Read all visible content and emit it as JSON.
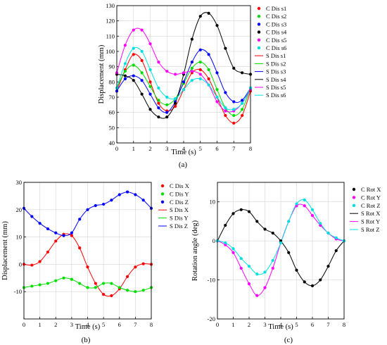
{
  "figure_labels": [
    "(a)",
    "(b)",
    "(c)"
  ],
  "chart_data": [
    {
      "type": "scatter",
      "panel": "(a)",
      "xlabel": "Time (s)",
      "ylabel": "Displacement (mm)",
      "xlim": [
        0,
        8
      ],
      "ylim": [
        40,
        130
      ],
      "x_ticks": [
        0,
        1,
        2,
        3,
        4,
        5,
        6,
        7,
        8
      ],
      "y_ticks": [
        40,
        50,
        60,
        70,
        80,
        90,
        100,
        110,
        120,
        130
      ],
      "grid": true,
      "legend_position": "right",
      "x": [
        0,
        0.5,
        1,
        1.5,
        2,
        2.5,
        3,
        3.5,
        4,
        4.5,
        5,
        5.5,
        6,
        6.5,
        7,
        7.5,
        8
      ],
      "series": [
        {
          "name": "C Dis s1",
          "kind": "marker",
          "color": "#ff0000",
          "values": [
            74,
            88,
            98,
            94,
            80,
            66,
            61,
            64,
            75,
            86,
            88,
            82,
            70,
            58,
            53,
            58,
            74
          ]
        },
        {
          "name": "C Dis s2",
          "kind": "marker",
          "color": "#00dd00",
          "values": [
            76,
            87,
            91,
            86,
            77,
            68,
            65,
            69,
            79,
            89,
            93,
            88,
            75,
            63,
            58,
            62,
            76
          ]
        },
        {
          "name": "C Dis s3",
          "kind": "marker",
          "color": "#0000ff",
          "values": [
            74,
            82,
            84,
            81,
            72,
            63,
            60,
            67,
            80,
            93,
            101,
            98,
            86,
            73,
            67,
            68,
            76
          ]
        },
        {
          "name": "C Dis s4",
          "kind": "marker",
          "color": "#000000",
          "values": [
            85,
            84,
            81,
            72,
            62,
            57,
            57,
            66,
            85,
            108,
            123,
            125,
            117,
            102,
            89,
            86,
            85
          ]
        },
        {
          "name": "C Dis s5",
          "kind": "marker",
          "color": "#ff00ff",
          "values": [
            86,
            104,
            114,
            114,
            105,
            93,
            87,
            85,
            86,
            87,
            85,
            78,
            67,
            61,
            61,
            66,
            75
          ]
        },
        {
          "name": "C Dis s6",
          "kind": "marker",
          "color": "#00e0e0",
          "values": [
            76,
            92,
            102,
            100,
            88,
            76,
            70,
            69,
            75,
            81,
            82,
            78,
            70,
            63,
            62,
            66,
            76
          ]
        },
        {
          "name": "S Dis s1",
          "kind": "line",
          "color": "#ff0000",
          "values": [
            74,
            88,
            98,
            94,
            80,
            66,
            61,
            64,
            75,
            86,
            88,
            82,
            70,
            58,
            53,
            58,
            74
          ]
        },
        {
          "name": "S Dis s2",
          "kind": "line",
          "color": "#00dd00",
          "values": [
            76,
            87,
            91,
            86,
            77,
            68,
            65,
            69,
            79,
            89,
            93,
            88,
            75,
            63,
            58,
            62,
            76
          ]
        },
        {
          "name": "S Dis s3",
          "kind": "line",
          "color": "#0000ff",
          "values": [
            74,
            82,
            84,
            81,
            72,
            63,
            60,
            67,
            80,
            93,
            101,
            98,
            86,
            73,
            67,
            68,
            76
          ]
        },
        {
          "name": "S Dis s4",
          "kind": "line",
          "color": "#000000",
          "values": [
            85,
            84,
            81,
            72,
            62,
            57,
            57,
            66,
            85,
            108,
            123,
            125,
            117,
            102,
            89,
            86,
            85
          ]
        },
        {
          "name": "S Dis s5",
          "kind": "line",
          "color": "#ff00ff",
          "values": [
            86,
            104,
            114,
            114,
            105,
            93,
            87,
            85,
            86,
            87,
            85,
            78,
            67,
            61,
            61,
            66,
            75
          ]
        },
        {
          "name": "S Dis s6",
          "kind": "line",
          "color": "#00e0e0",
          "values": [
            76,
            92,
            102,
            100,
            88,
            76,
            70,
            69,
            75,
            81,
            82,
            78,
            70,
            63,
            62,
            66,
            76
          ]
        }
      ]
    },
    {
      "type": "scatter",
      "panel": "(b)",
      "xlabel": "Time (s)",
      "ylabel": "Displacement (mm)",
      "xlim": [
        0,
        8
      ],
      "ylim": [
        -20,
        30
      ],
      "x_ticks": [
        0,
        1,
        2,
        3,
        4,
        5,
        6,
        7,
        8
      ],
      "y_ticks": [
        -10,
        0,
        10,
        20,
        30
      ],
      "grid": true,
      "legend_position": "right",
      "x": [
        0,
        0.5,
        1,
        1.5,
        2,
        2.5,
        3,
        3.5,
        4,
        4.5,
        5,
        5.5,
        6,
        6.5,
        7,
        7.5,
        8
      ],
      "series": [
        {
          "name": "C Dis X",
          "kind": "marker",
          "color": "#ff0000",
          "values": [
            0,
            -0.3,
            1,
            4.5,
            8.5,
            11,
            10.5,
            6,
            -1,
            -7,
            -11,
            -11.5,
            -9,
            -4.5,
            -1,
            0.2,
            0
          ]
        },
        {
          "name": "C Dis Y",
          "kind": "marker",
          "color": "#00dd00",
          "values": [
            -8.5,
            -8,
            -7.5,
            -7,
            -6,
            -5,
            -5.5,
            -7,
            -8.5,
            -8.5,
            -7,
            -7,
            -8.5,
            -9.5,
            -10,
            -9.5,
            -8.5
          ]
        },
        {
          "name": "C Dis Z",
          "kind": "marker",
          "color": "#0000ff",
          "values": [
            20.5,
            17.5,
            15,
            13,
            11.5,
            10.5,
            11.5,
            16.5,
            20,
            21.5,
            22,
            23.5,
            25.5,
            26.5,
            25.5,
            23.5,
            20.5
          ]
        },
        {
          "name": "S Dis X",
          "kind": "line",
          "color": "#ff0000",
          "values": [
            0,
            -0.3,
            1,
            4.5,
            8.5,
            11,
            10.5,
            6,
            -1,
            -7,
            -11,
            -11.5,
            -9,
            -4.5,
            -1,
            0.2,
            0
          ]
        },
        {
          "name": "S Dis Y",
          "kind": "line",
          "color": "#00dd00",
          "values": [
            -8.5,
            -8,
            -7.5,
            -7,
            -6,
            -5,
            -5.5,
            -7,
            -8.5,
            -8.5,
            -7,
            -7,
            -8.5,
            -9.5,
            -10,
            -9.5,
            -8.5
          ]
        },
        {
          "name": "S Dis Z",
          "kind": "line",
          "color": "#0000ff",
          "values": [
            20.5,
            17.5,
            15,
            13,
            11.5,
            10.5,
            11.5,
            16.5,
            20,
            21.5,
            22,
            23.5,
            25.5,
            26.5,
            25.5,
            23.5,
            20.5
          ]
        }
      ]
    },
    {
      "type": "scatter",
      "panel": "(c)",
      "xlabel": "Time (s)",
      "ylabel": "Rotation angle (deg)",
      "xlim": [
        0,
        8
      ],
      "ylim": [
        -20,
        15
      ],
      "x_ticks": [
        0,
        1,
        2,
        3,
        4,
        5,
        6,
        7,
        8
      ],
      "y_ticks": [
        -20,
        -10,
        0,
        10
      ],
      "grid": true,
      "legend_position": "right",
      "x": [
        0,
        0.5,
        1,
        1.5,
        2,
        2.5,
        3,
        3.5,
        4,
        4.5,
        5,
        5.5,
        6,
        6.5,
        7,
        7.5,
        8
      ],
      "series": [
        {
          "name": "C Rot X",
          "kind": "marker",
          "color": "#000000",
          "values": [
            0,
            4,
            7,
            8,
            7.5,
            5,
            3,
            2,
            0,
            -3,
            -7.5,
            -10.5,
            -11.5,
            -10,
            -6.5,
            -2.5,
            0
          ]
        },
        {
          "name": "C Rot Y",
          "kind": "marker",
          "color": "#ff00ff",
          "values": [
            0,
            -1,
            -3,
            -7,
            -11,
            -14,
            -12,
            -7,
            -0.5,
            5,
            9,
            9,
            6.5,
            4,
            2,
            0.5,
            0
          ]
        },
        {
          "name": "C Rot Z",
          "kind": "marker",
          "color": "#00e0e0",
          "values": [
            0,
            -0.5,
            -2,
            -4.5,
            -6.5,
            -8.5,
            -8,
            -5,
            -0.5,
            5,
            9.5,
            10.5,
            8,
            4.5,
            2,
            0.8,
            0
          ]
        },
        {
          "name": "S Rot X",
          "kind": "line",
          "color": "#000000",
          "values": [
            0,
            4,
            7,
            8,
            7.5,
            5,
            3,
            2,
            0,
            -3,
            -7.5,
            -10.5,
            -11.5,
            -10,
            -6.5,
            -2.5,
            0
          ]
        },
        {
          "name": "S Rot Y",
          "kind": "line",
          "color": "#ff00ff",
          "values": [
            0,
            -1,
            -3,
            -7,
            -11,
            -14,
            -12,
            -7,
            -0.5,
            5,
            9,
            9,
            6.5,
            4,
            2,
            0.5,
            0
          ]
        },
        {
          "name": "S Rot Z",
          "kind": "line",
          "color": "#00e0e0",
          "values": [
            0,
            -0.5,
            -2,
            -4.5,
            -6.5,
            -8.5,
            -8,
            -5,
            -0.5,
            5,
            9.5,
            10.5,
            8,
            4.5,
            2,
            0.8,
            0
          ]
        }
      ]
    }
  ]
}
